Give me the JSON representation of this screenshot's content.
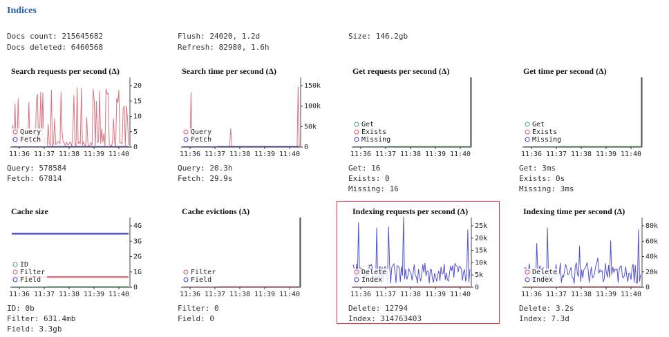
{
  "page": {
    "title": "Indices"
  },
  "summary": {
    "docs_count": "Docs count: 215645682",
    "docs_deleted": "Docs deleted: 6460568",
    "flush": "Flush: 24020, 1.2d",
    "refresh": "Refresh: 82980, 1.6h",
    "size": "Size: 146.2gb"
  },
  "colors": {
    "accent": "#2561b0",
    "red": "#d45a6a",
    "blue": "#3d3dcc",
    "green": "#4aa86b",
    "highlight": "#e23636"
  },
  "x_ticks": [
    "11:36",
    "11:37",
    "11:38",
    "11:39",
    "11:40"
  ],
  "panels": [
    {
      "id": "search-requests",
      "title": "Search requests per second (Δ)",
      "stats": [
        "Query: 578584",
        "Fetch: 67814"
      ],
      "legend": [
        {
          "name": "Query",
          "color": "red"
        },
        {
          "name": "Fetch",
          "color": "blue"
        }
      ],
      "y_ticks": [
        "20",
        "15",
        "10",
        "5",
        "0"
      ]
    },
    {
      "id": "search-time",
      "title": "Search time per second (Δ)",
      "stats": [
        "Query: 20.3h",
        "Fetch: 29.9s"
      ],
      "legend": [
        {
          "name": "Query",
          "color": "red"
        },
        {
          "name": "Fetch",
          "color": "blue"
        }
      ],
      "y_ticks": [
        "150k",
        "100k",
        "50k",
        "0"
      ]
    },
    {
      "id": "get-requests",
      "title": "Get requests per second (Δ)",
      "stats": [
        "Get: 16",
        "Exists: 0",
        "Missing: 16"
      ],
      "legend": [
        {
          "name": "Get",
          "color": "green"
        },
        {
          "name": "Exists",
          "color": "red"
        },
        {
          "name": "Missing",
          "color": "blue"
        }
      ],
      "y_ticks": []
    },
    {
      "id": "get-time",
      "title": "Get time per second (Δ)",
      "stats": [
        "Get: 3ms",
        "Exists: 0s",
        "Missing: 3ms"
      ],
      "legend": [
        {
          "name": "Get",
          "color": "green"
        },
        {
          "name": "Exists",
          "color": "red"
        },
        {
          "name": "Missing",
          "color": "blue"
        }
      ],
      "y_ticks": []
    },
    {
      "id": "cache-size",
      "title": "Cache size",
      "stats": [
        "ID: 0b",
        "Filter: 631.4mb",
        "Field: 3.3gb"
      ],
      "legend": [
        {
          "name": "ID",
          "color": "green"
        },
        {
          "name": "Filter",
          "color": "red"
        },
        {
          "name": "Field",
          "color": "blue"
        }
      ],
      "y_ticks": [
        "4G",
        "3G",
        "2G",
        "1G",
        "0"
      ]
    },
    {
      "id": "cache-evictions",
      "title": "Cache evictions (Δ)",
      "stats": [
        "Filter: 0",
        "Field: 0"
      ],
      "legend": [
        {
          "name": "Filter",
          "color": "red"
        },
        {
          "name": "Field",
          "color": "blue"
        }
      ],
      "y_ticks": []
    },
    {
      "id": "indexing-requests",
      "title": "Indexing requests per second (Δ)",
      "stats": [
        "Delete: 12794",
        "Index: 314763403"
      ],
      "legend": [
        {
          "name": "Delete",
          "color": "red"
        },
        {
          "name": "Index",
          "color": "blue"
        }
      ],
      "y_ticks": [
        "25k",
        "20k",
        "15k",
        "10k",
        "5k",
        "0"
      ]
    },
    {
      "id": "indexing-time",
      "title": "Indexing time per second (Δ)",
      "stats": [
        "Delete: 3.2s",
        "Index: 7.3d"
      ],
      "legend": [
        {
          "name": "Delete",
          "color": "red"
        },
        {
          "name": "Index",
          "color": "blue"
        }
      ],
      "y_ticks": [
        "80k",
        "60k",
        "40k",
        "20k",
        "0"
      ]
    }
  ]
}
